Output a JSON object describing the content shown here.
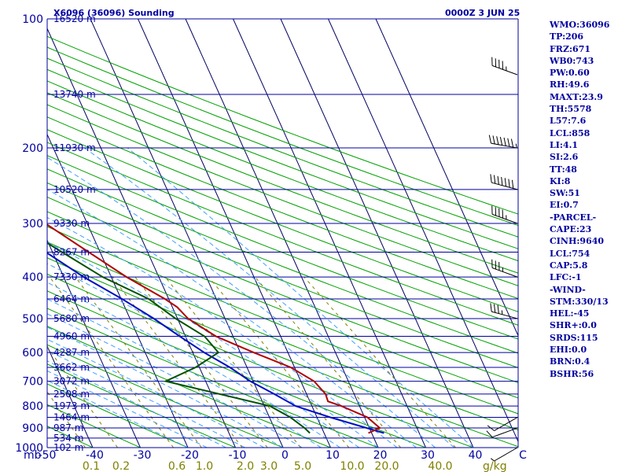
{
  "header": {
    "station": "X6096 (36096) Sounding",
    "time": "0000Z  3 JUN 25"
  },
  "stats": [
    "WMO:36096",
    "TP:206",
    "FRZ:671",
    "WB0:743",
    "PW:0.60",
    "RH:49.6",
    "MAXT:23.9",
    "TH:5578",
    "L57:7.6",
    "LCL:858",
    "LI:4.1",
    "SI:2.6",
    "TT:48",
    "KI:8",
    "SW:51",
    "EI:0.7",
    "-PARCEL-",
    "CAPE:23",
    "CINH:9640",
    "LCL:754",
    "CAP:5.8",
    "LFC:-1",
    "-WIND-",
    "STM:330/13",
    "HEL:-45",
    "SHR+:0.0",
    "SRDS:115",
    "EHI:0.0",
    "BRN:0.4",
    "BSHR:56"
  ],
  "colors": {
    "isobar": "#0000a0",
    "temperature": "#b00000",
    "dewpoint": "#005000",
    "parcel": "#0010c0",
    "dry_adiabat": "#00a000",
    "isotherm": "#000060",
    "mixing_ratio": "#808000",
    "moist_adiabat": "#40a0ff",
    "mr_label": "#808000",
    "frame": "#0000a0"
  },
  "chart_data": {
    "type": "skew-t",
    "pressure_axis": {
      "unit_label": "mb",
      "range_mb": [
        1000,
        100
      ],
      "scale": "log",
      "tick_labels": [
        "100",
        "200",
        "300",
        "400",
        "500",
        "600",
        "700",
        "800",
        "900",
        "1000"
      ]
    },
    "temperature_axis": {
      "range_c": [
        -50,
        50
      ],
      "tick_labels": [
        "-50",
        "-40",
        "-30",
        "-20",
        "-10",
        "0",
        "10",
        "20",
        "30",
        "40",
        "C"
      ]
    },
    "mixing_ratio_labels": {
      "unit": "g/kg",
      "values": [
        "0.1",
        "0.2",
        "0.6",
        "1.0",
        "2.0",
        "3.0",
        "5.0",
        "10.0",
        "20.0",
        "40.0"
      ]
    },
    "heights": [
      {
        "p": 100,
        "label": "16520 m"
      },
      {
        "p": 150,
        "label": "13740 m"
      },
      {
        "p": 200,
        "label": "11930 m"
      },
      {
        "p": 250,
        "label": "10520 m"
      },
      {
        "p": 300,
        "label": "9330 m"
      },
      {
        "p": 350,
        "label": "8267 m"
      },
      {
        "p": 400,
        "label": "7330 m"
      },
      {
        "p": 450,
        "label": "6464 m"
      },
      {
        "p": 500,
        "label": "5680 m"
      },
      {
        "p": 550,
        "label": "4960 m"
      },
      {
        "p": 600,
        "label": "4287 m"
      },
      {
        "p": 650,
        "label": "3662 m"
      },
      {
        "p": 700,
        "label": "3072 m"
      },
      {
        "p": 750,
        "label": "2508 m"
      },
      {
        "p": 800,
        "label": "1973 m"
      },
      {
        "p": 850,
        "label": "1464 m"
      },
      {
        "p": 900,
        "label": "987 m"
      },
      {
        "p": 950,
        "label": "534 m"
      },
      {
        "p": 1000,
        "label": "102 m"
      }
    ],
    "temperature": [
      [
        925,
        19.3
      ],
      [
        900,
        22.2
      ],
      [
        850,
        20.6
      ],
      [
        800,
        16.2
      ],
      [
        780,
        13.8
      ],
      [
        750,
        14.0
      ],
      [
        700,
        12.8
      ],
      [
        650,
        9.2
      ],
      [
        600,
        2.8
      ],
      [
        550,
        -3.6
      ],
      [
        500,
        -7.8
      ],
      [
        470,
        -9.0
      ],
      [
        450,
        -10.8
      ],
      [
        400,
        -16.8
      ],
      [
        350,
        -22.4
      ],
      [
        300,
        -28.8
      ],
      [
        250,
        -37.2
      ],
      [
        210,
        -42.6
      ],
      [
        200,
        -42.4
      ],
      [
        180,
        -34.2
      ],
      [
        150,
        -26.0
      ],
      [
        120,
        -21.4
      ],
      [
        110,
        -18.8
      ],
      [
        100,
        -12.2
      ]
    ],
    "dewpoint": [
      [
        925,
        7.0
      ],
      [
        900,
        6.4
      ],
      [
        850,
        4.4
      ],
      [
        800,
        1.2
      ],
      [
        700,
        -18.4
      ],
      [
        650,
        -10.8
      ],
      [
        600,
        -4.6
      ],
      [
        550,
        -6.0
      ],
      [
        500,
        -10.4
      ],
      [
        450,
        -14.2
      ],
      [
        400,
        -21.8
      ],
      [
        350,
        -28.0
      ],
      [
        300,
        -35.0
      ],
      [
        260,
        -40.2
      ],
      [
        200,
        -48.6
      ],
      [
        190,
        -48.4
      ],
      [
        150,
        -54.0
      ],
      [
        120,
        -61.4
      ],
      [
        110,
        -62.8
      ],
      [
        100,
        -62.4
      ]
    ],
    "parcel": [
      [
        925,
        22.6
      ],
      [
        850,
        12.8
      ],
      [
        800,
        6.6
      ],
      [
        750,
        3.2
      ],
      [
        700,
        -0.6
      ],
      [
        650,
        -3.6
      ],
      [
        600,
        -7.6
      ],
      [
        550,
        -11.2
      ],
      [
        500,
        -15.0
      ],
      [
        450,
        -19.8
      ],
      [
        400,
        -25.8
      ],
      [
        350,
        -31.4
      ],
      [
        300,
        -37.8
      ],
      [
        250,
        -44.4
      ],
      [
        200,
        -51.6
      ],
      [
        150,
        -60.0
      ],
      [
        120,
        -65.6
      ],
      [
        110,
        -68.4
      ]
    ],
    "wind_barbs": [
      {
        "p": 135,
        "dir": 290,
        "speed_kt": 45
      },
      {
        "p": 200,
        "dir": 280,
        "speed_kt": 75
      },
      {
        "p": 250,
        "dir": 285,
        "speed_kt": 70
      },
      {
        "p": 300,
        "dir": 290,
        "speed_kt": 45
      },
      {
        "p": 400,
        "dir": 290,
        "speed_kt": 35
      },
      {
        "p": 500,
        "dir": 285,
        "speed_kt": 35
      },
      {
        "p": 850,
        "dir": 240,
        "speed_kt": 10
      },
      {
        "p": 900,
        "dir": 250,
        "speed_kt": 10
      },
      {
        "p": 1000,
        "dir": 240,
        "speed_kt": 5
      }
    ]
  }
}
